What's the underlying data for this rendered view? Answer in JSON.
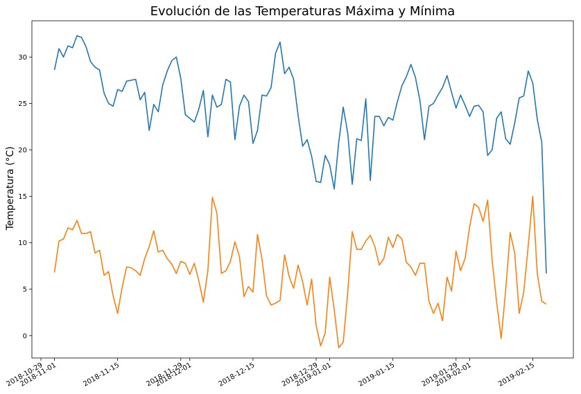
{
  "chart_data": {
    "type": "line",
    "title": "Evolución de las Temperaturas Máxima y Mínima",
    "xlabel": "",
    "ylabel": "Temperatura (°C)",
    "x_start": "2018-11-01",
    "x_end": "2019-02-19",
    "x_step_days": 1,
    "xlim": [
      "2018-10-27",
      "2019-02-24"
    ],
    "ylim": [
      -2.4,
      33.9
    ],
    "grid": false,
    "x_ticks": [
      {
        "date": "2018-10-29",
        "label": "2018-10-29"
      },
      {
        "date": "2018-11-01",
        "label": "2018-11-01"
      },
      {
        "date": "2018-11-15",
        "label": "2018-11-15"
      },
      {
        "date": "2018-11-29",
        "label": "2018-11-29"
      },
      {
        "date": "2018-12-01",
        "label": "2018-12-01"
      },
      {
        "date": "2018-12-15",
        "label": "2018-12-15"
      },
      {
        "date": "2018-12-29",
        "label": "2018-12-29"
      },
      {
        "date": "2019-01-01",
        "label": "2019-01-01"
      },
      {
        "date": "2019-01-15",
        "label": "2019-01-15"
      },
      {
        "date": "2019-01-29",
        "label": "2019-01-29"
      },
      {
        "date": "2019-02-01",
        "label": "2019-02-01"
      },
      {
        "date": "2019-02-15",
        "label": "2019-02-15"
      }
    ],
    "y_ticks": [
      0,
      5,
      10,
      15,
      20,
      25,
      30
    ],
    "series": [
      {
        "color": "#1f77b4",
        "values": [
          28.6,
          30.9,
          30.0,
          31.2,
          31.0,
          32.3,
          32.1,
          31.1,
          29.5,
          28.9,
          28.6,
          26.1,
          25.0,
          24.7,
          26.5,
          26.3,
          27.4,
          27.5,
          27.6,
          25.4,
          26.2,
          22.1,
          24.9,
          24.1,
          27.0,
          28.5,
          29.6,
          30.0,
          27.7,
          23.8,
          23.4,
          23.0,
          24.4,
          26.4,
          21.4,
          25.9,
          24.6,
          24.9,
          27.6,
          27.3,
          21.1,
          24.7,
          25.9,
          25.2,
          20.7,
          22.1,
          25.9,
          25.8,
          26.7,
          30.4,
          31.6,
          28.2,
          28.9,
          27.6,
          23.7,
          20.4,
          21.1,
          19.3,
          16.6,
          16.5,
          19.4,
          18.4,
          15.8,
          20.8,
          24.6,
          21.8,
          16.3,
          21.2,
          21.0,
          25.5,
          16.7,
          23.6,
          23.6,
          22.6,
          23.5,
          23.2,
          25.2,
          26.9,
          27.9,
          29.2,
          27.8,
          25.3,
          21.1,
          24.7,
          25.0,
          25.9,
          26.7,
          28.0,
          26.2,
          24.5,
          25.9,
          24.8,
          23.6,
          24.7,
          24.8,
          24.1,
          19.4,
          20.0,
          23.4,
          24.1,
          21.2,
          20.6,
          22.9,
          25.6,
          25.8,
          28.5,
          27.2,
          23.3,
          20.8,
          6.7
        ]
      },
      {
        "color": "#ff7f0e",
        "values": [
          6.8,
          10.2,
          10.4,
          11.6,
          11.4,
          12.4,
          11.0,
          11.0,
          11.2,
          8.9,
          9.2,
          6.5,
          6.9,
          4.3,
          2.4,
          5.2,
          7.4,
          7.3,
          7.0,
          6.5,
          8.3,
          9.6,
          11.3,
          9.0,
          9.2,
          8.3,
          7.7,
          6.7,
          8.0,
          7.8,
          6.6,
          7.8,
          5.9,
          3.6,
          7.0,
          14.9,
          13.2,
          6.7,
          7.0,
          8.0,
          10.1,
          8.5,
          4.2,
          5.3,
          4.7,
          10.9,
          8.2,
          4.3,
          3.3,
          3.5,
          3.8,
          8.7,
          6.4,
          5.1,
          7.6,
          5.8,
          3.3,
          6.1,
          1.1,
          -1.1,
          0.3,
          6.3,
          2.8,
          -1.3,
          -0.7,
          4.7,
          11.2,
          9.3,
          9.3,
          10.2,
          10.8,
          9.6,
          7.6,
          8.3,
          10.6,
          9.5,
          10.9,
          10.4,
          7.9,
          7.4,
          6.5,
          7.8,
          7.8,
          3.7,
          2.4,
          3.5,
          1.6,
          6.3,
          4.8,
          9.1,
          7.0,
          8.3,
          11.7,
          14.2,
          13.8,
          12.3,
          14.6,
          8.1,
          3.6,
          -0.3,
          4.9,
          11.1,
          8.9,
          2.4,
          4.7,
          9.7,
          15.0,
          6.7,
          3.7,
          3.4
        ]
      }
    ]
  }
}
